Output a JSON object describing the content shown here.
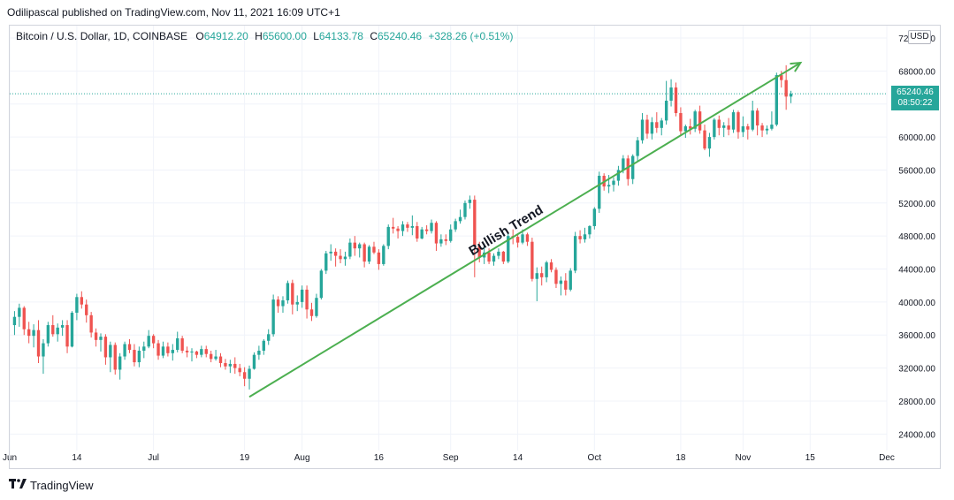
{
  "header": {
    "publisher_line": "Odilipascal published on TradingView.com, Nov 11, 2021 16:09 UTC+1"
  },
  "legend": {
    "symbol": "Bitcoin / U.S. Dollar, 1D, COINBASE",
    "o_label": "O",
    "o_value": "64912.20",
    "h_label": "H",
    "h_value": "65600.00",
    "l_label": "L",
    "l_value": "64133.78",
    "c_label": "C",
    "c_value": "65240.46",
    "change": "+328.26 (+0.51%)"
  },
  "currency_badge": "USD",
  "price_tag": {
    "price": "65240.46",
    "countdown": "08:50:22"
  },
  "footer": {
    "brand": "TradingView"
  },
  "annotation": {
    "text": "Bullish Trend"
  },
  "colors": {
    "up": "#26a69a",
    "down": "#ef5350",
    "trend": "#4caf50",
    "grid": "#f0f3fa",
    "last_price_line": "#26a69a"
  },
  "chart_data": {
    "type": "candlestick",
    "title": "",
    "ylim": [
      22000,
      73500
    ],
    "y_ticks": [
      "24000.00",
      "28000.00",
      "32000.00",
      "36000.00",
      "40000.00",
      "44000.00",
      "48000.00",
      "52000.00",
      "56000.00",
      "60000.00",
      "64000.00",
      "68000.00",
      "72000.00"
    ],
    "x_ticks": [
      "Jun",
      "14",
      "Jul",
      "19",
      "Aug",
      "16",
      "Sep",
      "14",
      "Oct",
      "18",
      "Nov",
      "15",
      "Dec"
    ],
    "x_tick_days": [
      0,
      14,
      30,
      49,
      61,
      77,
      92,
      106,
      122,
      140,
      153,
      167,
      183
    ],
    "xlim": [
      0,
      183
    ],
    "last_price": 65240.46,
    "trend_line": {
      "start": {
        "day": 50,
        "price": 28500
      },
      "end": {
        "day": 165,
        "price": 69000
      }
    },
    "candles": [
      [
        1,
        37200,
        38900,
        36000,
        38200
      ],
      [
        2,
        38200,
        39800,
        37000,
        39300
      ],
      [
        3,
        39300,
        39500,
        36000,
        36700
      ],
      [
        4,
        36700,
        37600,
        35000,
        35900
      ],
      [
        5,
        35900,
        37300,
        34500,
        36600
      ],
      [
        6,
        36600,
        37800,
        32600,
        33400
      ],
      [
        7,
        33400,
        35500,
        31300,
        35000
      ],
      [
        8,
        35000,
        37600,
        34600,
        37200
      ],
      [
        9,
        37200,
        38400,
        35800,
        36100
      ],
      [
        10,
        36100,
        37400,
        35200,
        36900
      ],
      [
        11,
        36900,
        37800,
        35900,
        37200
      ],
      [
        12,
        37200,
        37800,
        33800,
        34600
      ],
      [
        13,
        34600,
        38900,
        34500,
        38700
      ],
      [
        14,
        38700,
        41000,
        37800,
        40600
      ],
      [
        15,
        40600,
        41300,
        39200,
        39700
      ],
      [
        16,
        39700,
        40300,
        37500,
        38400
      ],
      [
        17,
        38400,
        38800,
        35700,
        36300
      ],
      [
        18,
        36300,
        36800,
        34600,
        35400
      ],
      [
        19,
        35400,
        36200,
        34000,
        35800
      ],
      [
        20,
        35800,
        36100,
        32400,
        33300
      ],
      [
        21,
        33300,
        35200,
        31500,
        34800
      ],
      [
        22,
        34800,
        35100,
        31200,
        31800
      ],
      [
        23,
        31800,
        33800,
        30600,
        33400
      ],
      [
        24,
        33400,
        35200,
        33000,
        34900
      ],
      [
        25,
        34900,
        35500,
        33800,
        34200
      ],
      [
        26,
        34200,
        34900,
        32200,
        32700
      ],
      [
        27,
        32700,
        34600,
        32100,
        34100
      ],
      [
        28,
        34100,
        35200,
        33200,
        34600
      ],
      [
        29,
        34600,
        36600,
        34400,
        35900
      ],
      [
        30,
        35900,
        36100,
        34400,
        35000
      ],
      [
        31,
        35000,
        35400,
        33000,
        33500
      ],
      [
        32,
        33500,
        35200,
        33200,
        34600
      ],
      [
        33,
        34600,
        35100,
        33400,
        33800
      ],
      [
        34,
        33800,
        34900,
        32900,
        34200
      ],
      [
        35,
        34200,
        36400,
        33900,
        35600
      ],
      [
        36,
        35600,
        35900,
        33800,
        34100
      ],
      [
        37,
        34100,
        34600,
        33300,
        33900
      ],
      [
        38,
        33900,
        34400,
        32800,
        34000
      ],
      [
        39,
        34000,
        34100,
        33200,
        33600
      ],
      [
        40,
        33600,
        34700,
        33300,
        34300
      ],
      [
        41,
        34300,
        34700,
        33300,
        33700
      ],
      [
        42,
        33700,
        34100,
        32700,
        33100
      ],
      [
        43,
        33100,
        34200,
        32900,
        33400
      ],
      [
        44,
        33400,
        33800,
        32100,
        32600
      ],
      [
        45,
        32600,
        33100,
        31800,
        32200
      ],
      [
        46,
        32200,
        33000,
        31400,
        32500
      ],
      [
        47,
        32500,
        33300,
        31300,
        32000
      ],
      [
        48,
        32000,
        32500,
        31000,
        31500
      ],
      [
        49,
        31500,
        32100,
        29800,
        30700
      ],
      [
        50,
        30700,
        32300,
        29400,
        31900
      ],
      [
        51,
        31900,
        33900,
        31800,
        33600
      ],
      [
        52,
        33600,
        34700,
        33000,
        34100
      ],
      [
        53,
        34100,
        35500,
        33600,
        35300
      ],
      [
        54,
        35300,
        36700,
        34800,
        36100
      ],
      [
        55,
        36100,
        40900,
        35800,
        40300
      ],
      [
        56,
        40300,
        40700,
        38700,
        39500
      ],
      [
        57,
        39500,
        40700,
        38700,
        40200
      ],
      [
        58,
        40200,
        42600,
        39800,
        42300
      ],
      [
        59,
        42300,
        42700,
        38500,
        39700
      ],
      [
        60,
        39700,
        40800,
        38900,
        40000
      ],
      [
        61,
        40000,
        42000,
        39300,
        41500
      ],
      [
        62,
        41500,
        42000,
        38000,
        39100
      ],
      [
        63,
        39100,
        39900,
        37700,
        38300
      ],
      [
        64,
        38300,
        41000,
        38100,
        40500
      ],
      [
        65,
        40500,
        44000,
        40300,
        43800
      ],
      [
        66,
        43800,
        46200,
        43400,
        45900
      ],
      [
        67,
        45900,
        47000,
        45000,
        46100
      ],
      [
        68,
        46100,
        46500,
        44300,
        45600
      ],
      [
        69,
        45600,
        46400,
        44700,
        45200
      ],
      [
        70,
        45200,
        46100,
        44400,
        45500
      ],
      [
        71,
        45500,
        47700,
        45200,
        47200
      ],
      [
        72,
        47200,
        48000,
        45600,
        46500
      ],
      [
        73,
        46500,
        47200,
        45400,
        47000
      ],
      [
        74,
        47000,
        47200,
        44200,
        44900
      ],
      [
        75,
        44900,
        46900,
        44600,
        46700
      ],
      [
        76,
        46700,
        47300,
        45800,
        46000
      ],
      [
        77,
        46000,
        46400,
        43900,
        44600
      ],
      [
        78,
        44600,
        47000,
        44400,
        46800
      ],
      [
        79,
        46800,
        49400,
        46400,
        49100
      ],
      [
        80,
        49100,
        50200,
        48300,
        48900
      ],
      [
        81,
        48900,
        49200,
        47700,
        48600
      ],
      [
        82,
        48600,
        49800,
        48000,
        49400
      ],
      [
        83,
        49400,
        49700,
        48500,
        49000
      ],
      [
        84,
        49000,
        50500,
        48100,
        49200
      ],
      [
        85,
        49200,
        49700,
        47300,
        47700
      ],
      [
        86,
        47700,
        49100,
        47600,
        48800
      ],
      [
        87,
        48800,
        49300,
        48200,
        48600
      ],
      [
        88,
        48600,
        50000,
        48300,
        49600
      ],
      [
        89,
        49600,
        49800,
        46200,
        47100
      ],
      [
        90,
        47100,
        48200,
        46700,
        47600
      ],
      [
        91,
        47600,
        48200,
        46900,
        47400
      ],
      [
        92,
        47400,
        49400,
        47200,
        48800
      ],
      [
        93,
        48800,
        50100,
        48500,
        49800
      ],
      [
        94,
        49800,
        51200,
        49500,
        50300
      ],
      [
        95,
        50300,
        52300,
        50000,
        52000
      ],
      [
        96,
        52000,
        52900,
        51300,
        52400
      ],
      [
        97,
        52400,
        52900,
        43000,
        46800
      ],
      [
        98,
        46800,
        47300,
        44800,
        45400
      ],
      [
        99,
        45400,
        46800,
        44600,
        46000
      ],
      [
        100,
        46000,
        46500,
        44600,
        44900
      ],
      [
        101,
        44900,
        45900,
        44400,
        45600
      ],
      [
        102,
        45600,
        46500,
        45200,
        46100
      ],
      [
        103,
        46100,
        46200,
        44600,
        44900
      ],
      [
        104,
        44900,
        48400,
        44700,
        48000
      ],
      [
        105,
        48000,
        48800,
        47000,
        47900
      ],
      [
        106,
        47900,
        48300,
        46600,
        47200
      ],
      [
        107,
        47200,
        48800,
        47000,
        48200
      ],
      [
        108,
        48200,
        48400,
        46800,
        47300
      ],
      [
        109,
        47300,
        47800,
        42500,
        42800
      ],
      [
        110,
        42800,
        44200,
        40100,
        43500
      ],
      [
        111,
        43500,
        44300,
        42000,
        43000
      ],
      [
        112,
        43000,
        45000,
        42400,
        44800
      ],
      [
        113,
        44800,
        45200,
        43600,
        43900
      ],
      [
        114,
        43900,
        44200,
        41700,
        42200
      ],
      [
        115,
        42200,
        43100,
        40800,
        42600
      ],
      [
        116,
        42600,
        43500,
        40800,
        41500
      ],
      [
        117,
        41500,
        44100,
        41300,
        43800
      ],
      [
        118,
        43800,
        48500,
        43500,
        48000
      ],
      [
        119,
        48000,
        48700,
        47100,
        47600
      ],
      [
        120,
        47600,
        49000,
        47200,
        48200
      ],
      [
        121,
        48200,
        49300,
        47700,
        49200
      ],
      [
        122,
        49200,
        51500,
        48800,
        51300
      ],
      [
        123,
        51300,
        55800,
        50800,
        55300
      ],
      [
        124,
        55300,
        55600,
        53500,
        54000
      ],
      [
        125,
        54000,
        55400,
        53200,
        54200
      ],
      [
        126,
        54200,
        55100,
        53400,
        54700
      ],
      [
        127,
        54700,
        56500,
        54100,
        56000
      ],
      [
        128,
        56000,
        57800,
        55600,
        57400
      ],
      [
        129,
        57400,
        57800,
        54100,
        54900
      ],
      [
        130,
        54900,
        57900,
        54300,
        57700
      ],
      [
        131,
        57700,
        60000,
        57000,
        59600
      ],
      [
        132,
        59600,
        62900,
        59200,
        62100
      ],
      [
        133,
        62100,
        62700,
        59800,
        60400
      ],
      [
        134,
        60400,
        62400,
        59700,
        61800
      ],
      [
        135,
        61800,
        63000,
        60500,
        61100
      ],
      [
        136,
        61100,
        62300,
        60200,
        62000
      ],
      [
        137,
        62000,
        66800,
        61500,
        64400
      ],
      [
        138,
        64400,
        67000,
        63700,
        66000
      ],
      [
        139,
        66000,
        66600,
        62500,
        62900
      ],
      [
        140,
        62900,
        63600,
        60200,
        60700
      ],
      [
        141,
        60700,
        61500,
        59900,
        61300
      ],
      [
        142,
        61300,
        62200,
        60300,
        61000
      ],
      [
        143,
        61000,
        63300,
        60600,
        63100
      ],
      [
        144,
        63100,
        63800,
        60400,
        60800
      ],
      [
        145,
        60800,
        61500,
        58400,
        58600
      ],
      [
        146,
        58600,
        60500,
        57600,
        60000
      ],
      [
        147,
        60000,
        62300,
        59700,
        62100
      ],
      [
        148,
        62100,
        62600,
        60200,
        61100
      ],
      [
        149,
        61100,
        61800,
        60000,
        61400
      ],
      [
        150,
        61400,
        62300,
        60200,
        60900
      ],
      [
        151,
        60900,
        63300,
        60500,
        63000
      ],
      [
        152,
        63000,
        63200,
        59800,
        60600
      ],
      [
        153,
        60600,
        62500,
        60000,
        61300
      ],
      [
        154,
        61300,
        61600,
        59700,
        60900
      ],
      [
        155,
        60900,
        64400,
        60700,
        63200
      ],
      [
        156,
        63200,
        63500,
        60200,
        61400
      ],
      [
        157,
        61400,
        61700,
        60000,
        60800
      ],
      [
        158,
        60800,
        61400,
        60300,
        61000
      ],
      [
        159,
        61000,
        63100,
        60800,
        61500
      ],
      [
        160,
        61500,
        67800,
        61300,
        67500
      ],
      [
        161,
        67500,
        68000,
        66000,
        66900
      ],
      [
        162,
        66900,
        68700,
        63300,
        64900
      ],
      [
        163,
        64900,
        65600,
        64100,
        65240
      ]
    ]
  }
}
